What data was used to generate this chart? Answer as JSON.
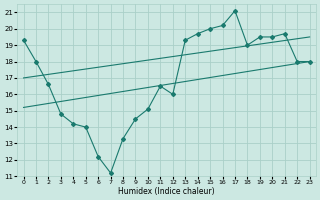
{
  "xlabel": "Humidex (Indice chaleur)",
  "bg_color": "#cce8e2",
  "grid_color": "#aad0c8",
  "line_color": "#1a7a6e",
  "xlim": [
    -0.5,
    23.5
  ],
  "ylim": [
    11,
    21.5
  ],
  "xticks": [
    0,
    1,
    2,
    3,
    4,
    5,
    6,
    7,
    8,
    9,
    10,
    11,
    12,
    13,
    14,
    15,
    16,
    17,
    18,
    19,
    20,
    21,
    22,
    23
  ],
  "yticks": [
    11,
    12,
    13,
    14,
    15,
    16,
    17,
    18,
    19,
    20,
    21
  ],
  "line1_x": [
    0,
    1,
    2,
    3,
    4,
    5,
    6,
    7,
    8,
    9,
    10,
    11,
    12,
    13,
    14,
    15,
    16,
    17,
    18,
    19,
    20,
    21,
    22,
    23
  ],
  "line1_y": [
    19.3,
    18.0,
    16.6,
    14.8,
    14.2,
    14.0,
    12.2,
    11.2,
    13.3,
    14.5,
    15.1,
    16.5,
    16.0,
    19.3,
    19.7,
    20.0,
    20.2,
    21.1,
    19.0,
    19.5,
    19.5,
    19.7,
    18.0,
    18.0
  ],
  "line2_x": [
    0,
    23
  ],
  "line2_y": [
    17.0,
    19.5
  ],
  "line3_x": [
    0,
    23
  ],
  "line3_y": [
    15.2,
    18.0
  ]
}
